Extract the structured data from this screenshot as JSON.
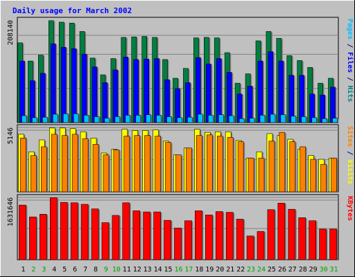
{
  "chart_data": {
    "type": "bar",
    "title": "Daily usage for March 2002",
    "categories": [
      "1",
      "2",
      "3",
      "4",
      "5",
      "6",
      "7",
      "8",
      "9",
      "10",
      "11",
      "12",
      "13",
      "14",
      "15",
      "16",
      "17",
      "18",
      "19",
      "20",
      "21",
      "22",
      "23",
      "24",
      "25",
      "26",
      "27",
      "28",
      "29",
      "30",
      "31"
    ],
    "weekend_days": [
      "2",
      "3",
      "9",
      "10",
      "16",
      "17",
      "23",
      "24",
      "30",
      "31"
    ],
    "panels": [
      {
        "id": "hits_panel",
        "ymax_label": "208140",
        "ylim": [
          0,
          208140
        ],
        "axis_title_parts": [
          {
            "text": "Pages",
            "color": "#00c0ff"
          },
          {
            "text": " / ",
            "color": "#000080"
          },
          {
            "text": "Files",
            "color": "#0000ff"
          },
          {
            "text": " / ",
            "color": "#000080"
          },
          {
            "text": "Hits",
            "color": "#008080"
          }
        ],
        "series": [
          {
            "name": "Hits",
            "color": "#008040",
            "values": [
              162000,
              125000,
              137000,
              207000,
              204000,
              202000,
              185000,
              131000,
              97000,
              130000,
              173000,
              174000,
              175000,
              173000,
              128000,
              90000,
              110000,
              172000,
              173000,
              172000,
              142000,
              80000,
              99000,
              166000,
              185000,
              171000,
              136000,
              126000,
              112000,
              80000,
              90000
            ]
          },
          {
            "name": "Files",
            "color": "#0000ff",
            "values": [
              125000,
              85000,
              100000,
              160000,
              153000,
              150000,
              139000,
              113000,
              81000,
              107000,
              133000,
              128000,
              129000,
              130000,
              87000,
              69000,
              81000,
              132000,
              119000,
              130000,
              102000,
              58000,
              74000,
              125000,
              144000,
              125000,
              96000,
              96000,
              58000,
              56000,
              72000
            ]
          },
          {
            "name": "Pages",
            "color": "#00c0ff",
            "values": [
              14000,
              10000,
              11000,
              17000,
              18000,
              18000,
              15000,
              12000,
              9000,
              12000,
              15000,
              15000,
              16000,
              15000,
              12000,
              10000,
              11000,
              17000,
              15000,
              16000,
              14000,
              8000,
              9000,
              15000,
              17000,
              16000,
              13000,
              12000,
              10000,
              8000,
              9000
            ]
          }
        ]
      },
      {
        "id": "visits_panel",
        "ymax_label": "5146",
        "ylim": [
          0,
          5146
        ],
        "axis_title_parts": [
          {
            "text": "Sites",
            "color": "#ff8000"
          },
          {
            "text": " / ",
            "color": "#000080"
          },
          {
            "text": "Visits",
            "color": "#ffff00"
          }
        ],
        "series": [
          {
            "name": "Visits",
            "color": "#ffff00",
            "values": [
              4600,
              3200,
              4150,
              5100,
              5100,
              5050,
              4800,
              4300,
              3100,
              3400,
              5000,
              4900,
              4900,
              4950,
              4050,
              2950,
              3500,
              5000,
              4750,
              4800,
              4800,
              4100,
              2700,
              3200,
              4650,
              4500,
              4200,
              3400,
              2900,
              2600,
              2700
            ]
          },
          {
            "name": "Sites",
            "color": "#ff8000",
            "values": [
              4300,
              2900,
              3600,
              4600,
              4500,
              4600,
              4250,
              3800,
              2950,
              3350,
              4450,
              4500,
              4500,
              4450,
              3950,
              2950,
              3500,
              4500,
              4550,
              4450,
              4350,
              4000,
              2700,
              2700,
              4050,
              4750,
              4000,
              3600,
              2600,
              2200,
              2700
            ]
          }
        ]
      },
      {
        "id": "kbytes_panel",
        "ymax_label": "1631646",
        "ylim": [
          0,
          1631646
        ],
        "axis_title_parts": [
          {
            "text": "KBytes",
            "color": "#ff0000"
          }
        ],
        "series": [
          {
            "name": "KBytes",
            "color": "#ff0000",
            "values": [
              1430000,
              1120000,
              1190000,
              1620000,
              1500000,
              1490000,
              1450000,
              1330000,
              970000,
              1160000,
              1490000,
              1280000,
              1250000,
              1250000,
              1030000,
              830000,
              1020000,
              1280000,
              1170000,
              1260000,
              1240000,
              1060000,
              620000,
              740000,
              1310000,
              1480000,
              1320000,
              1100000,
              1020000,
              800000,
              800000
            ]
          }
        ]
      }
    ]
  },
  "colors": {
    "background": "#c0c0c0",
    "title": "#0000ff",
    "weekday_label": "#000000",
    "weekend_label": "#00a000",
    "grid": "#808080"
  }
}
